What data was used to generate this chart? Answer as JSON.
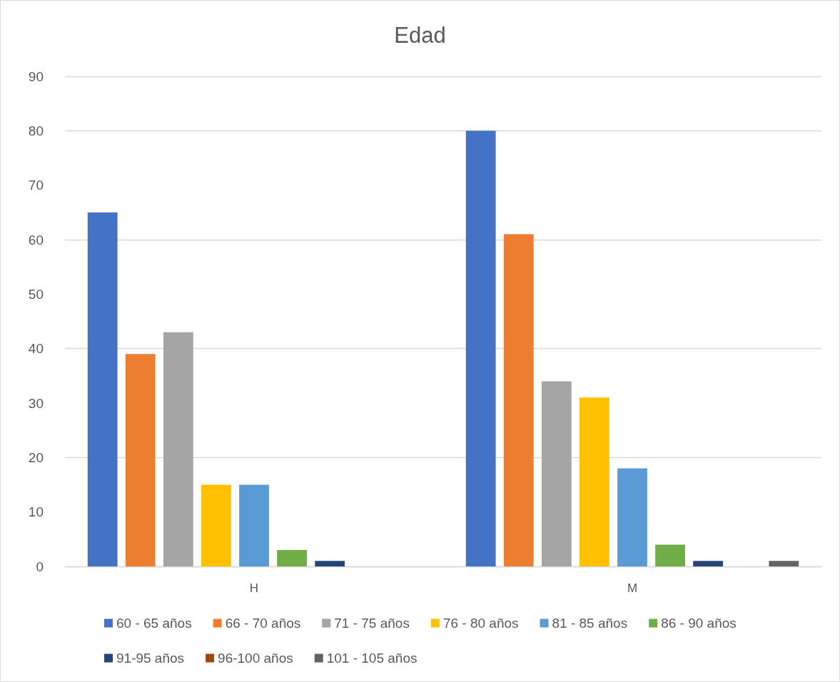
{
  "chart_data": {
    "type": "bar",
    "title": "Edad",
    "categories": [
      "H",
      "M"
    ],
    "series": [
      {
        "name": "60 - 65 años",
        "color": "#4472c4",
        "values": [
          65,
          80
        ]
      },
      {
        "name": "66 - 70 años",
        "color": "#ed7d31",
        "values": [
          39,
          61
        ]
      },
      {
        "name": "71 - 75 años",
        "color": "#a5a5a5",
        "values": [
          43,
          34
        ]
      },
      {
        "name": "76 - 80 años",
        "color": "#ffc000",
        "values": [
          15,
          31
        ]
      },
      {
        "name": "81 - 85 años",
        "color": "#5b9bd5",
        "values": [
          15,
          18
        ]
      },
      {
        "name": "86 - 90 años",
        "color": "#70ad47",
        "values": [
          3,
          4
        ]
      },
      {
        "name": "91-95 años",
        "color": "#264478",
        "values": [
          1,
          1
        ]
      },
      {
        "name": "96-100 años",
        "color": "#9e480e",
        "values": [
          0,
          0
        ]
      },
      {
        "name": "101 - 105 años",
        "color": "#636363",
        "values": [
          0,
          1
        ]
      }
    ],
    "ylim": [
      0,
      90
    ],
    "yticks": [
      0,
      10,
      20,
      30,
      40,
      50,
      60,
      70,
      80,
      90
    ],
    "grid": "y",
    "legend": "bottom"
  }
}
